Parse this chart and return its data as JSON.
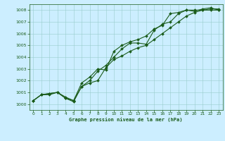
{
  "xlabel": "Graphe pression niveau de la mer (hPa)",
  "xlim": [
    -0.5,
    23.5
  ],
  "ylim": [
    999.5,
    1008.5
  ],
  "yticks": [
    1000,
    1001,
    1002,
    1003,
    1004,
    1005,
    1006,
    1007,
    1008
  ],
  "xticks": [
    0,
    1,
    2,
    3,
    4,
    5,
    6,
    7,
    8,
    9,
    10,
    11,
    12,
    13,
    14,
    15,
    16,
    17,
    18,
    19,
    20,
    21,
    22,
    23
  ],
  "background_color": "#cceeff",
  "grid_color": "#99cccc",
  "line_color": "#1a5c1a",
  "series": [
    [
      1000.3,
      1000.8,
      1000.8,
      1001.0,
      1000.5,
      1000.3,
      1001.5,
      1002.0,
      1002.8,
      1003.3,
      1004.0,
      1004.7,
      1005.2,
      1005.2,
      1005.1,
      1006.3,
      1006.8,
      1007.0,
      1007.7,
      1008.0,
      1007.9,
      1008.1,
      1008.2,
      1008.0
    ],
    [
      1000.3,
      1000.8,
      1000.9,
      1001.0,
      1000.6,
      1000.3,
      1001.8,
      1002.3,
      1003.0,
      1002.9,
      1004.5,
      1005.0,
      1005.3,
      1005.5,
      1005.8,
      1006.4,
      1006.7,
      1007.7,
      1007.8,
      1008.0,
      1008.0,
      1008.0,
      1008.0,
      1008.0
    ],
    [
      1000.3,
      1000.8,
      1000.9,
      1001.0,
      1000.5,
      1000.2,
      1001.5,
      1001.8,
      1002.0,
      1003.1,
      1003.8,
      1004.1,
      1004.5,
      1004.8,
      1005.0,
      1005.5,
      1006.0,
      1006.5,
      1007.0,
      1007.5,
      1007.8,
      1008.0,
      1008.1,
      1008.1
    ]
  ]
}
